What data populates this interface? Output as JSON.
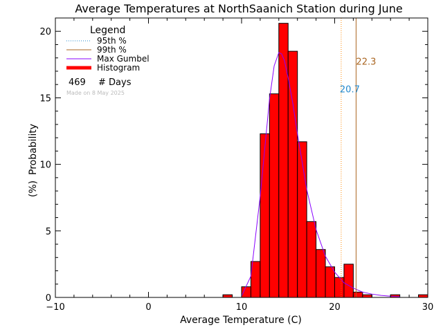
{
  "chart_data": {
    "type": "bar",
    "title": "Average Temperatures at NorthSaanich Station during June",
    "xlabel": "Average Temperature (C)",
    "ylabel_top": "Probability",
    "ylabel_bottom": "(%)",
    "xlim": [
      -10,
      30
    ],
    "ylim": [
      0,
      21
    ],
    "x_ticks": [
      -10,
      0,
      10,
      20,
      30
    ],
    "y_ticks": [
      0,
      5,
      10,
      15,
      20
    ],
    "bin_width": 1,
    "histogram": {
      "bin_starts": [
        8,
        9,
        10,
        11,
        12,
        13,
        14,
        15,
        16,
        17,
        18,
        19,
        20,
        21,
        22,
        23,
        24,
        25,
        26,
        27,
        28,
        29
      ],
      "values": [
        0.2,
        0.0,
        0.8,
        2.7,
        12.3,
        15.3,
        20.6,
        18.5,
        11.7,
        5.7,
        3.6,
        2.3,
        1.5,
        2.5,
        0.4,
        0.2,
        0.0,
        0.0,
        0.2,
        0.0,
        0.0,
        0.2
      ],
      "color": "#ff0000"
    },
    "gumbel": {
      "x": [
        10.0,
        11.0,
        12.0,
        13.0,
        13.5,
        14.0,
        14.3,
        14.6,
        15.0,
        15.5,
        16.0,
        16.5,
        17.0,
        18.0,
        19.0,
        20.0,
        21.0,
        22.0,
        23.0,
        24.0,
        25.0,
        26.0,
        27.0
      ],
      "y": [
        0.1,
        1.6,
        7.6,
        14.9,
        17.4,
        18.4,
        18.3,
        17.8,
        16.5,
        14.6,
        12.3,
        10.2,
        8.1,
        5.1,
        3.1,
        1.9,
        1.1,
        0.7,
        0.4,
        0.25,
        0.15,
        0.09,
        0.05
      ],
      "color": "#8800ff"
    },
    "p95": {
      "value": 20.7,
      "label": "20.7",
      "color": "#ff8800",
      "label_color": "#2288cc",
      "label_y": 15.4
    },
    "p99": {
      "value": 22.3,
      "label": "22.3",
      "color": "#aa6622",
      "label_color": "#aa6622",
      "label_y": 17.5
    },
    "legend": {
      "title": "Legend",
      "items": [
        {
          "label": "95th %",
          "style": "dotted",
          "color": "#2288cc"
        },
        {
          "label": "99th %",
          "style": "solid",
          "color": "#aa6622"
        },
        {
          "label": "Max Gumbel",
          "style": "solid",
          "color": "#8800ff"
        },
        {
          "label": "Histogram",
          "style": "thick",
          "color": "#ff0000"
        }
      ],
      "days_count": "469",
      "days_label": "# Days",
      "made_on": "Made on 8 May 2025"
    }
  }
}
